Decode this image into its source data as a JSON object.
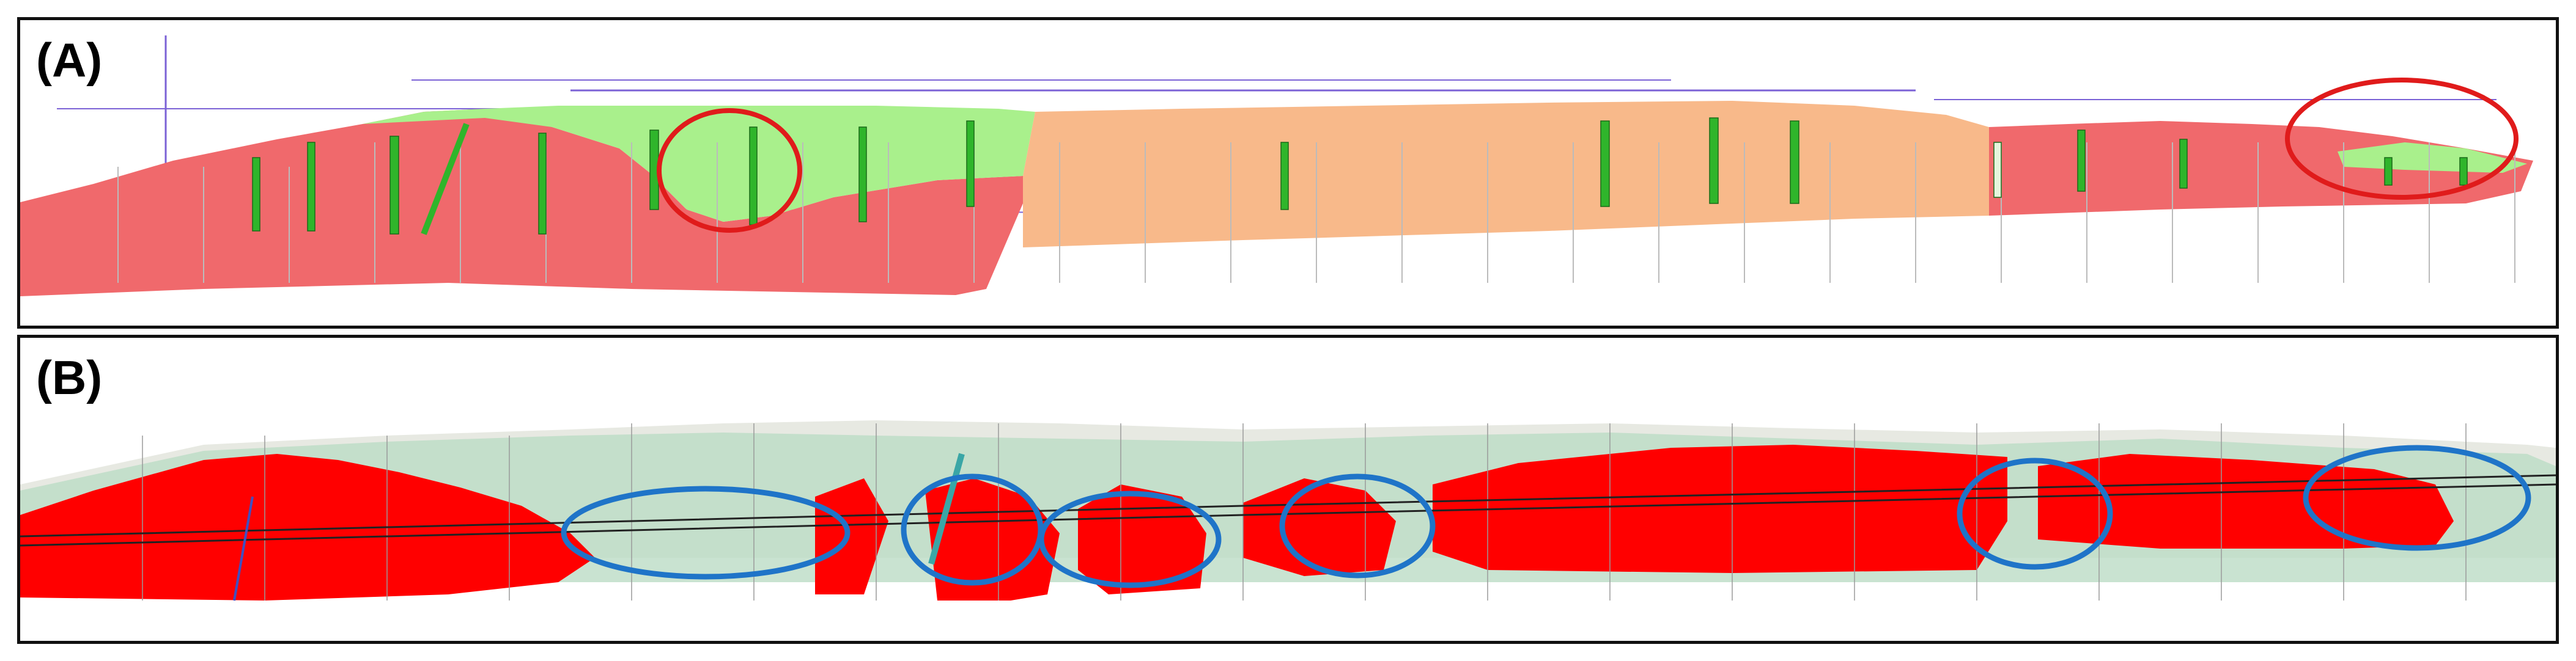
{
  "figure": {
    "panels": [
      {
        "label": "(A)"
      },
      {
        "label": "(B)"
      }
    ],
    "colors": {
      "red_zone": "#f0696c",
      "green_zone": "#a9f08c",
      "orange_zone": "#f8b98a",
      "borehole": "#2fb52b",
      "red_marker": "#e01b1b",
      "blue_marker": "#1f74c8",
      "intense_red": "#ff0000",
      "pale_green": "#bcdcc5",
      "pale_grey": "#e7e9e2",
      "purple_line": "#7b62d6"
    }
  }
}
